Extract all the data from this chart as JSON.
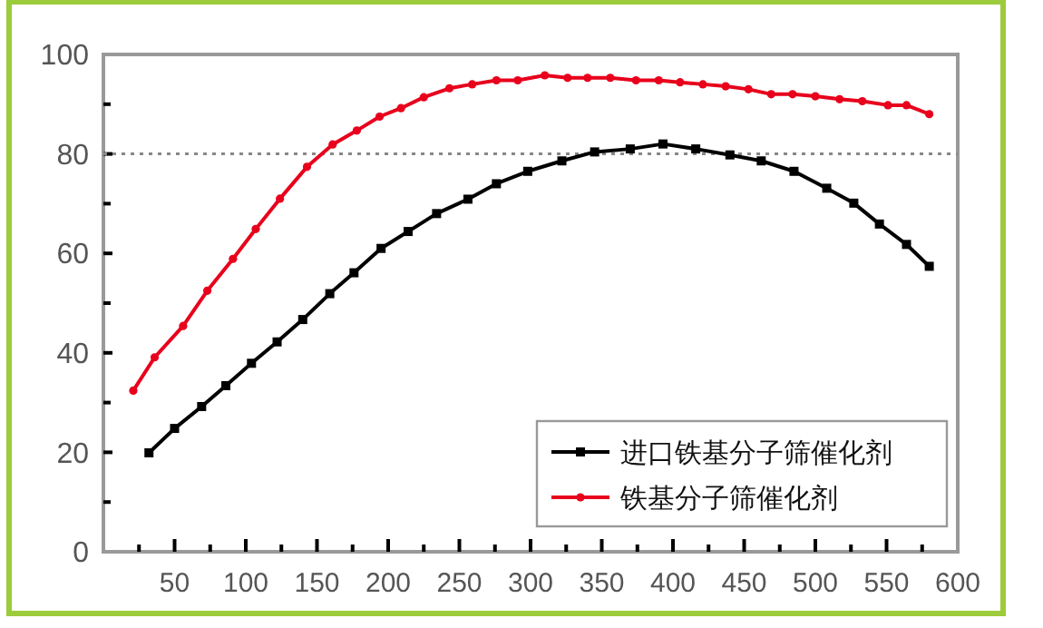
{
  "chart_data": {
    "type": "line",
    "xlim": [
      0,
      600
    ],
    "ylim": [
      0,
      100
    ],
    "xticks": [
      {
        "value": 25,
        "label": null
      },
      50,
      {
        "value": 75,
        "label": null
      },
      100,
      {
        "value": 125,
        "label": null
      },
      150,
      {
        "value": 175,
        "label": null
      },
      200,
      {
        "value": 225,
        "label": null
      },
      250,
      {
        "value": 275,
        "label": null
      },
      300,
      {
        "value": 325,
        "label": null
      },
      350,
      {
        "value": 375,
        "label": null
      },
      400,
      {
        "value": 425,
        "label": null
      },
      450,
      {
        "value": 475,
        "label": null
      },
      500,
      {
        "value": 525,
        "label": null
      },
      550,
      {
        "value": 575,
        "label": null
      },
      600
    ],
    "yticks": [
      0,
      {
        "value": 10,
        "label": null
      },
      20,
      {
        "value": 30,
        "label": null
      },
      40,
      {
        "value": 50,
        "label": null
      },
      60,
      {
        "value": 70,
        "label": null
      },
      80,
      {
        "value": 90,
        "label": null
      },
      100
    ],
    "grid": false,
    "legend": "bottom right",
    "ref_lines": [
      {
        "axis": "y",
        "value": 80,
        "label": null,
        "color": "#888888",
        "line_style": "dotted"
      }
    ],
    "series": [
      {
        "name": "进口铁基分子筛催化剂",
        "color": "#000000",
        "marker": "square",
        "x": [
          32,
          50,
          69,
          86,
          104,
          122,
          140,
          159,
          176,
          195,
          214,
          234,
          256,
          276,
          298,
          322,
          345,
          370,
          393,
          416,
          440,
          462,
          485,
          508,
          527,
          545,
          564,
          580
        ],
        "values": [
          19.9,
          24.8,
          29.2,
          33.4,
          37.9,
          42.2,
          46.7,
          51.9,
          56.1,
          61,
          64.4,
          68,
          70.9,
          74,
          76.5,
          78.6,
          80.4,
          81,
          82,
          81,
          79.8,
          78.6,
          76.5,
          73.1,
          70.1,
          65.9,
          61.8,
          57.4
        ]
      },
      {
        "name": "铁基分子筛催化剂",
        "color": "#e8001c",
        "marker": "circle",
        "x": [
          21,
          36,
          56,
          73,
          91,
          107,
          124,
          143,
          161,
          178,
          194,
          209,
          225,
          243,
          259,
          276,
          291,
          310,
          326,
          340,
          356,
          374,
          390,
          405,
          421,
          437,
          453,
          469,
          484,
          500,
          517,
          533,
          551,
          564,
          580
        ],
        "values": [
          32.4,
          39.1,
          45.4,
          52.5,
          58.9,
          64.9,
          71,
          77.4,
          81.9,
          84.7,
          87.5,
          89.2,
          91.4,
          93.2,
          94,
          94.8,
          94.8,
          95.8,
          95.3,
          95.3,
          95.3,
          94.8,
          94.8,
          94.4,
          94,
          93.6,
          93,
          92,
          92,
          91.6,
          91,
          90.6,
          89.8,
          89.8,
          88
        ]
      }
    ]
  }
}
